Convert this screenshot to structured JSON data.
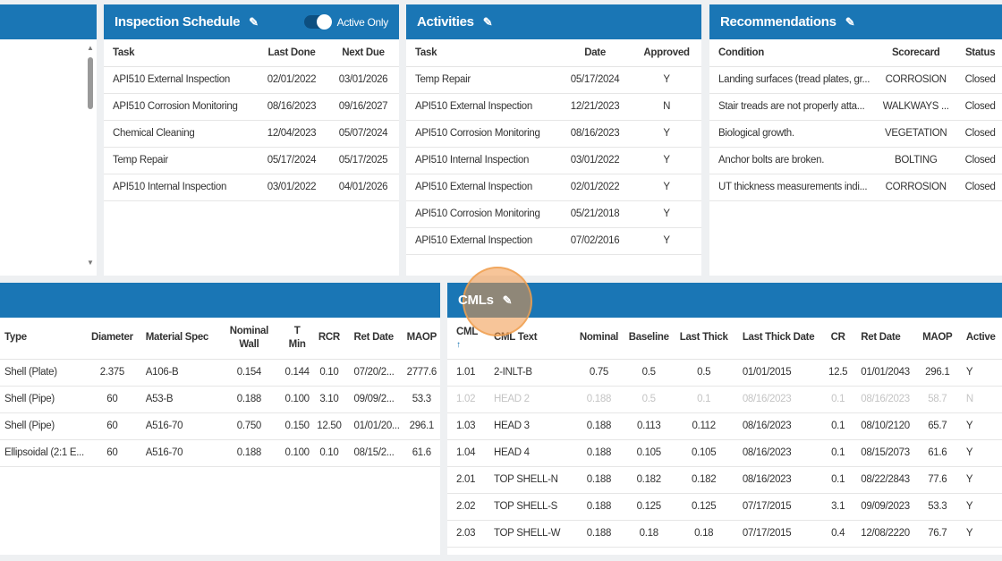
{
  "inspection": {
    "title": "Inspection Schedule",
    "toggle_label": "Active Only",
    "columns": [
      "Task",
      "Last Done",
      "Next Due"
    ],
    "rows": [
      [
        "API510 External Inspection",
        "02/01/2022",
        "03/01/2026"
      ],
      [
        "API510 Corrosion Monitoring",
        "08/16/2023",
        "09/16/2027"
      ],
      [
        "Chemical Cleaning",
        "12/04/2023",
        "05/07/2024"
      ],
      [
        "Temp Repair",
        "05/17/2024",
        "05/17/2025"
      ],
      [
        "API510 Internal Inspection",
        "03/01/2022",
        "04/01/2026"
      ]
    ]
  },
  "activities": {
    "title": "Activities",
    "columns": [
      "Task",
      "Date",
      "Approved"
    ],
    "rows": [
      [
        "Temp Repair",
        "05/17/2024",
        "Y"
      ],
      [
        "API510 External Inspection",
        "12/21/2023",
        "N"
      ],
      [
        "API510 Corrosion Monitoring",
        "08/16/2023",
        "Y"
      ],
      [
        "API510 Internal Inspection",
        "03/01/2022",
        "Y"
      ],
      [
        "API510 External Inspection",
        "02/01/2022",
        "Y"
      ],
      [
        "API510 Corrosion Monitoring",
        "05/21/2018",
        "Y"
      ],
      [
        "API510 External Inspection",
        "07/02/2016",
        "Y"
      ]
    ]
  },
  "recommendations": {
    "title": "Recommendations",
    "columns": [
      "Condition",
      "Scorecard",
      "Status"
    ],
    "rows": [
      [
        "Landing surfaces (tread plates, gr...",
        "CORROSION",
        "Closed"
      ],
      [
        "Stair treads are not properly atta...",
        "WALKWAYS ...",
        "Closed"
      ],
      [
        "Biological growth.",
        "VEGETATION",
        "Closed"
      ],
      [
        "Anchor bolts are broken.",
        "BOLTING",
        "Closed"
      ],
      [
        "UT thickness measurements indi...",
        "CORROSION",
        "Closed"
      ]
    ]
  },
  "components": {
    "columns": [
      "Type",
      "Diameter",
      "Material Spec",
      "Nominal Wall",
      "T Min",
      "RCR",
      "Ret Date",
      "MAOP"
    ],
    "rows": [
      [
        "Shell (Plate)",
        "2.375",
        "A106-B",
        "0.154",
        "0.144",
        "0.10",
        "07/20/2...",
        "2777.6"
      ],
      [
        "Shell (Pipe)",
        "60",
        "A53-B",
        "0.188",
        "0.100",
        "3.10",
        "09/09/2...",
        "53.3"
      ],
      [
        "Shell (Pipe)",
        "60",
        "A516-70",
        "0.750",
        "0.150",
        "12.50",
        "01/01/20...",
        "296.1"
      ],
      [
        "Ellipsoidal (2:1 E...",
        "60",
        "A516-70",
        "0.188",
        "0.100",
        "0.10",
        "08/15/2...",
        "61.6"
      ]
    ]
  },
  "cmls": {
    "title": "CMLs",
    "sort_icon": "arrow-up",
    "columns": [
      "CML",
      "CML Text",
      "Nominal",
      "Baseline",
      "Last Thick",
      "Last Thick Date",
      "CR",
      "Ret Date",
      "MAOP",
      "Active"
    ],
    "rows": [
      [
        "1.01",
        "2-INLT-B",
        "0.75",
        "0.5",
        "0.5",
        "01/01/2015",
        "12.5",
        "01/01/2043",
        "296.1",
        "Y"
      ],
      [
        "1.02",
        "HEAD 2",
        "0.188",
        "0.5",
        "0.1",
        "08/16/2023",
        "0.1",
        "08/16/2023",
        "58.7",
        "N"
      ],
      [
        "1.03",
        "HEAD 3",
        "0.188",
        "0.113",
        "0.112",
        "08/16/2023",
        "0.1",
        "08/10/2120",
        "65.7",
        "Y"
      ],
      [
        "1.04",
        "HEAD 4",
        "0.188",
        "0.105",
        "0.105",
        "08/16/2023",
        "0.1",
        "08/15/2073",
        "61.6",
        "Y"
      ],
      [
        "2.01",
        "TOP SHELL-N",
        "0.188",
        "0.182",
        "0.182",
        "08/16/2023",
        "0.1",
        "08/22/2843",
        "77.6",
        "Y"
      ],
      [
        "2.02",
        "TOP SHELL-S",
        "0.188",
        "0.125",
        "0.125",
        "07/17/2015",
        "3.1",
        "09/09/2023",
        "53.3",
        "Y"
      ],
      [
        "2.03",
        "TOP SHELL-W",
        "0.188",
        "0.18",
        "0.18",
        "07/17/2015",
        "0.4",
        "12/08/2220",
        "76.7",
        "Y"
      ]
    ]
  },
  "colors": {
    "header": "#1a76b5",
    "highlight": "#f0a050"
  }
}
